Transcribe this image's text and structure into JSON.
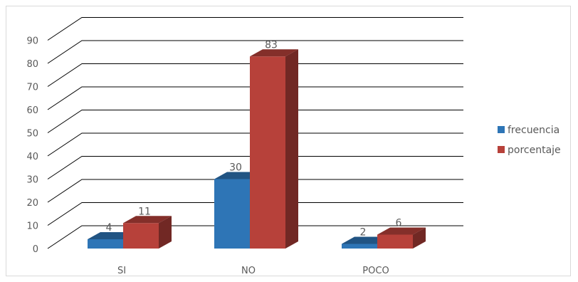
{
  "chart_data": {
    "type": "bar",
    "title": "",
    "xlabel": "",
    "ylabel": "",
    "categories": [
      "SI",
      "NO",
      "POCO"
    ],
    "series": [
      {
        "name": "frecuencia",
        "values": [
          4,
          30,
          2
        ],
        "color": "#2e75b6"
      },
      {
        "name": "porcentaje",
        "values": [
          11,
          83,
          6
        ],
        "color": "#b7413a"
      }
    ],
    "ylim": [
      0,
      90
    ],
    "yticks": [
      0,
      10,
      20,
      30,
      40,
      50,
      60,
      70,
      80,
      90
    ],
    "grid": true,
    "legend_position": "right",
    "style": "3d-clustered-column"
  }
}
